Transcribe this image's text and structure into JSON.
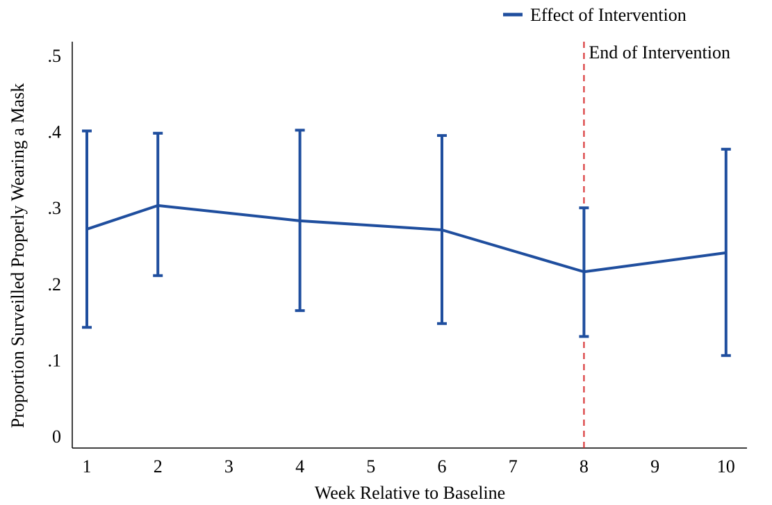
{
  "chart_data": {
    "type": "line",
    "title": "",
    "xlabel": "Week Relative to Baseline",
    "ylabel": "Proportion Surveilled Properly Wearing a Mask",
    "xlim": [
      1,
      10
    ],
    "ylim": [
      0,
      0.5
    ],
    "x_ticks": [
      1,
      2,
      3,
      4,
      5,
      6,
      7,
      8,
      9,
      10
    ],
    "y_ticks": [
      0,
      0.1,
      0.2,
      0.3,
      0.4,
      0.5
    ],
    "y_tick_labels": [
      "0",
      ".1",
      ".2",
      ".3",
      ".4",
      ".5"
    ],
    "grid": false,
    "legend": {
      "position": "top-right",
      "entries": [
        "Effect of Intervention"
      ]
    },
    "series": [
      {
        "name": "Effect of Intervention",
        "color": "#1f4e9e",
        "x": [
          1,
          2,
          4,
          6,
          8,
          10
        ],
        "y": [
          0.272,
          0.303,
          0.283,
          0.271,
          0.216,
          0.241
        ],
        "ci_low": [
          0.143,
          0.211,
          0.165,
          0.148,
          0.131,
          0.106
        ],
        "ci_high": [
          0.401,
          0.398,
          0.402,
          0.395,
          0.3,
          0.377
        ]
      }
    ],
    "annotations": [
      {
        "type": "vline",
        "x": 8,
        "color": "#d62728",
        "style": "dashed",
        "label": "End of Intervention"
      }
    ]
  }
}
